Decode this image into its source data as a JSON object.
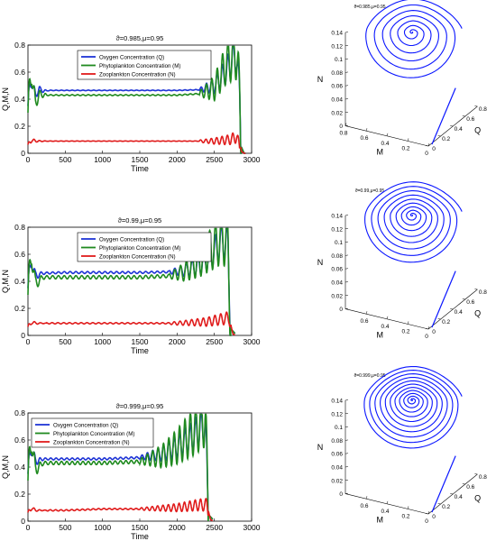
{
  "colors": {
    "oxygen": "#1f35d6",
    "phyto": "#1f8a1f",
    "zoo": "#e01c1c",
    "phase": "#0a16ff"
  },
  "legend_labels": {
    "oxygen": "Oxygen Concentration (Q)",
    "phyto": "Phytoplankton Concentration (M)",
    "zoo": "Zooplankton Concentration (N)"
  },
  "chart_data": [
    {
      "type": "line",
      "title": "ϑ=0.985,μ=0.95",
      "xlabel": "Time",
      "ylabel": "Q,M,N",
      "xlim": [
        0,
        3000
      ],
      "ylim": [
        0,
        0.8
      ],
      "xticks": [
        "0",
        "500",
        "1000",
        "1500",
        "2000",
        "2500",
        "3000"
      ],
      "yticks": [
        "0",
        "0.2",
        "0.4",
        "0.6",
        "0.8"
      ],
      "legend": "top-center",
      "series": [
        {
          "name": "Oxygen Concentration (Q)",
          "x": [
            0,
            50,
            100,
            150,
            200,
            300,
            500,
            1000,
            1500,
            2000,
            2300,
            2500,
            2650,
            2750,
            2800,
            2840,
            2860,
            2900
          ],
          "y": [
            0.35,
            0.55,
            0.42,
            0.48,
            0.46,
            0.465,
            0.465,
            0.465,
            0.465,
            0.465,
            0.47,
            0.5,
            0.6,
            0.7,
            0.72,
            0.4,
            0.05,
            0.0
          ]
        },
        {
          "name": "Phytoplankton Concentration (M)",
          "x": [
            0,
            50,
            100,
            150,
            200,
            300,
            500,
            1000,
            1500,
            2000,
            2300,
            2500,
            2650,
            2750,
            2800,
            2840,
            2860,
            2900
          ],
          "y": [
            0.3,
            0.6,
            0.36,
            0.44,
            0.43,
            0.43,
            0.43,
            0.43,
            0.43,
            0.43,
            0.44,
            0.48,
            0.65,
            0.72,
            0.74,
            0.4,
            0.05,
            0.0
          ]
        },
        {
          "name": "Zooplankton Concentration (N)",
          "x": [
            0,
            50,
            100,
            200,
            500,
            1000,
            1500,
            2000,
            2500,
            2700,
            2800,
            2850,
            2900
          ],
          "y": [
            0.05,
            0.1,
            0.09,
            0.09,
            0.09,
            0.09,
            0.09,
            0.09,
            0.09,
            0.1,
            0.12,
            0.02,
            0.0
          ]
        }
      ]
    },
    {
      "type": "line3d",
      "title": "ϑ=0.985,μ=0.95",
      "xlabel": "M",
      "ylabel": "Q",
      "zlabel": "N",
      "zticks": [
        "0",
        "0.02",
        "0.04",
        "0.06",
        "0.08",
        "0.1",
        "0.12",
        "0.14"
      ],
      "mticks": [
        "0.8",
        "0.6",
        "0.4",
        "0.2",
        "0"
      ],
      "qticks": [
        "0",
        "0.2",
        "0.4",
        "0.6",
        "0.8"
      ],
      "trajectory": {
        "name": "phase trajectory",
        "center": [
          0.43,
          0.465,
          0.12
        ]
      }
    },
    {
      "type": "line",
      "title": "ϑ=0.99,μ=0.95",
      "xlabel": "Time",
      "ylabel": "Q,M,N",
      "xlim": [
        0,
        3000
      ],
      "ylim": [
        0,
        0.8
      ],
      "xticks": [
        "0",
        "500",
        "1000",
        "1500",
        "2000",
        "2500",
        "3000"
      ],
      "yticks": [
        "0",
        "0.2",
        "0.4",
        "0.6",
        "0.8"
      ],
      "legend": "top-center",
      "series": [
        {
          "name": "Oxygen Concentration (Q)",
          "x": [
            0,
            50,
            100,
            200,
            500,
            1000,
            1500,
            1900,
            2100,
            2300,
            2500,
            2600,
            2680,
            2720,
            2800
          ],
          "y": [
            0.35,
            0.55,
            0.44,
            0.46,
            0.465,
            0.465,
            0.465,
            0.47,
            0.48,
            0.52,
            0.62,
            0.7,
            0.68,
            0.05,
            0.0
          ]
        },
        {
          "name": "Phytoplankton Concentration (M)",
          "x": [
            0,
            50,
            100,
            200,
            500,
            1000,
            1500,
            1900,
            2100,
            2300,
            2500,
            2600,
            2680,
            2720,
            2800
          ],
          "y": [
            0.3,
            0.6,
            0.38,
            0.43,
            0.43,
            0.43,
            0.43,
            0.44,
            0.47,
            0.55,
            0.66,
            0.72,
            0.7,
            0.05,
            0.0
          ]
        },
        {
          "name": "Zooplankton Concentration (N)",
          "x": [
            0,
            50,
            100,
            500,
            1000,
            1500,
            2000,
            2400,
            2600,
            2700,
            2750,
            2800
          ],
          "y": [
            0.05,
            0.1,
            0.09,
            0.09,
            0.09,
            0.09,
            0.09,
            0.1,
            0.12,
            0.13,
            0.01,
            0.0
          ]
        }
      ]
    },
    {
      "type": "line3d",
      "title": "ϑ=0.99,μ=0.95",
      "xlabel": "M",
      "ylabel": "Q",
      "zlabel": "N",
      "zticks": [
        "0",
        "0.02",
        "0.04",
        "0.06",
        "0.08",
        "0.1",
        "0.12",
        "0.14"
      ],
      "mticks": [
        "0.6",
        "0.4",
        "0.2",
        "0"
      ],
      "qticks": [
        "0",
        "0.2",
        "0.4",
        "0.6",
        "0.8"
      ],
      "trajectory": {
        "name": "phase trajectory",
        "center": [
          0.43,
          0.465,
          0.12
        ]
      }
    },
    {
      "type": "line",
      "title": "ϑ=0.999,μ=0.95",
      "xlabel": "Time",
      "ylabel": "Q,M,N",
      "xlim": [
        0,
        3000
      ],
      "ylim": [
        0,
        0.8
      ],
      "xticks": [
        "0",
        "500",
        "1000",
        "1500",
        "2000",
        "2500",
        "3000"
      ],
      "yticks": [
        "0",
        "0.2",
        "0.4",
        "0.6",
        "0.8"
      ],
      "legend": "top-left",
      "series": [
        {
          "name": "Oxygen Concentration (Q)",
          "x": [
            0,
            50,
            100,
            200,
            500,
            1000,
            1500,
            1800,
            2000,
            2200,
            2380,
            2420,
            2500
          ],
          "y": [
            0.35,
            0.55,
            0.44,
            0.46,
            0.46,
            0.46,
            0.47,
            0.5,
            0.55,
            0.62,
            0.72,
            0.05,
            0.0
          ]
        },
        {
          "name": "Phytoplankton Concentration (M)",
          "x": [
            0,
            50,
            100,
            200,
            500,
            1000,
            1500,
            1800,
            2000,
            2200,
            2380,
            2420,
            2500
          ],
          "y": [
            0.3,
            0.6,
            0.38,
            0.43,
            0.43,
            0.43,
            0.44,
            0.48,
            0.55,
            0.65,
            0.76,
            0.05,
            0.0
          ]
        },
        {
          "name": "Zooplankton Concentration (N)",
          "x": [
            0,
            50,
            100,
            500,
            1000,
            1500,
            2000,
            2300,
            2400,
            2450,
            2500
          ],
          "y": [
            0.05,
            0.1,
            0.08,
            0.08,
            0.09,
            0.09,
            0.1,
            0.12,
            0.12,
            0.01,
            0.0
          ]
        }
      ]
    },
    {
      "type": "line3d",
      "title": "ϑ=0.999,μ=0.95",
      "xlabel": "M",
      "ylabel": "Q",
      "zlabel": "N",
      "zticks": [
        "0",
        "0.02",
        "0.04",
        "0.06",
        "0.08",
        "0.1",
        "0.12",
        "0.14"
      ],
      "mticks": [
        "0.6",
        "0.4",
        "0.2",
        "0"
      ],
      "qticks": [
        "0",
        "0.2",
        "0.4",
        "0.6",
        "0.8"
      ],
      "trajectory": {
        "name": "phase trajectory",
        "center": [
          0.43,
          0.465,
          0.12
        ]
      }
    }
  ]
}
